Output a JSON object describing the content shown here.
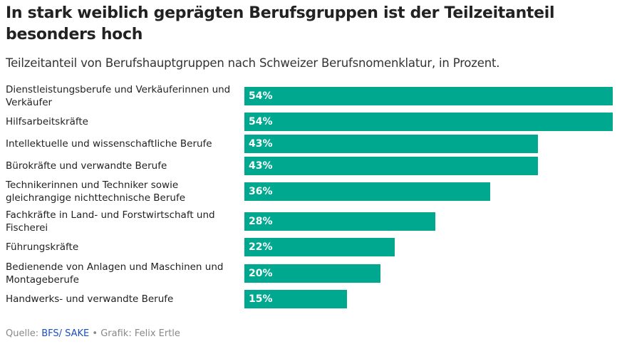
{
  "title": "In stark weiblich geprägten Berufsgruppen ist der Teilzeitanteil besonders hoch",
  "subtitle": "Teilzeitanteil von Berufshauptgruppen nach Schweizer Berufsnomenklatur, in Prozent.",
  "colors": {
    "bar": "#00a88f",
    "label": "#ffffff",
    "link": "#1a4fb5"
  },
  "chart_data": {
    "type": "bar",
    "orientation": "horizontal",
    "categories": [
      "Dienstleistungsberufe und Verkäuferinnen und Verkäufer",
      "Hilfsarbeitskräfte",
      "Intellektuelle und wissenschaftliche Berufe",
      "Bürokräfte und verwandte Berufe",
      "Technikerinnen und Techniker sowie gleichrangige nichttechnische Berufe",
      "Fachkräfte in Land- und Forstwirtschaft und Fischerei",
      "Führungskräfte",
      "Bedienende von Anlagen und Maschinen und Montageberufe",
      "Handwerks- und verwandte Berufe"
    ],
    "values": [
      54,
      54,
      43,
      43,
      36,
      28,
      22,
      20,
      15
    ],
    "labels": [
      "54%",
      "54%",
      "43%",
      "43%",
      "36%",
      "28%",
      "22%",
      "20%",
      "15%"
    ],
    "grid": false
  },
  "footer": {
    "source_prefix": "Quelle: ",
    "source_link": "BFS/ SAKE",
    "separator": " • ",
    "credit": "Grafik: Felix Ertle"
  }
}
